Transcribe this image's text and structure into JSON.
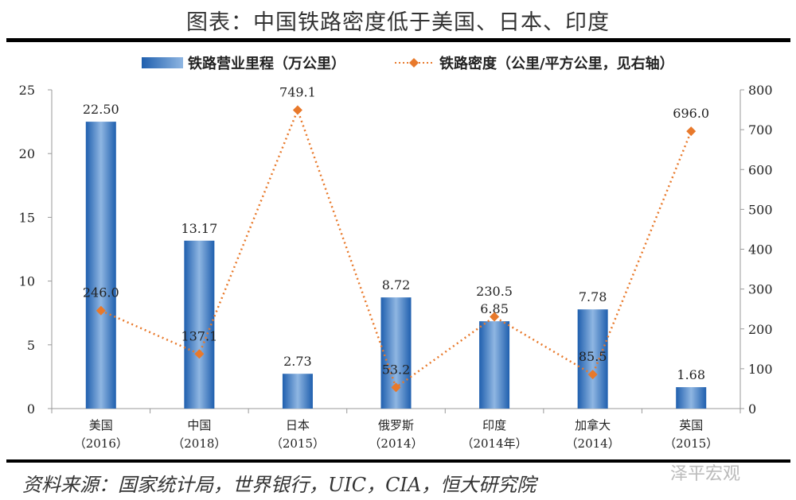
{
  "title": "图表：中国铁路密度低于美国、日本、印度",
  "source": "资料来源：国家统计局，世界银行，UIC，CIA，恒大研究院",
  "watermark": "泽平宏观",
  "chart_data": {
    "type": "bar+line",
    "categories": [
      [
        "美国",
        "（2016）"
      ],
      [
        "中国",
        "（2018）"
      ],
      [
        "日本",
        "（2015）"
      ],
      [
        "俄罗斯",
        "（2014）"
      ],
      [
        "印度",
        "（2014年）"
      ],
      [
        "加拿大",
        "（2014）"
      ],
      [
        "英国",
        "（2015）"
      ]
    ],
    "series": [
      {
        "name": "铁路营业里程（万公里）",
        "type": "bar",
        "axis": "left",
        "values": [
          22.5,
          13.17,
          2.73,
          8.72,
          6.85,
          7.78,
          1.68
        ],
        "labels": [
          "22.50",
          "13.17",
          "2.73",
          "8.72",
          "6.85",
          "7.78",
          "1.68"
        ],
        "color": "#2e6fb8"
      },
      {
        "name": "铁路密度（公里/平方公里，见右轴）",
        "type": "line",
        "axis": "right",
        "values": [
          246.0,
          137.1,
          749.1,
          53.2,
          230.5,
          85.5,
          696.0
        ],
        "labels": [
          "246.0",
          "137.1",
          "749.1",
          "53.2",
          "230.5",
          "85.5",
          "696.0"
        ],
        "color": "#e8792b",
        "line_style": "dotted",
        "marker": "diamond"
      }
    ],
    "left_axis": {
      "ylim": [
        0,
        25
      ],
      "ticks": [
        "0",
        "5",
        "10",
        "15",
        "20",
        "25"
      ]
    },
    "right_axis": {
      "ylim": [
        0,
        800
      ],
      "ticks": [
        "0",
        "100",
        "200",
        "300",
        "400",
        "500",
        "600",
        "700",
        "800"
      ]
    },
    "legend": "top",
    "grid": false
  }
}
